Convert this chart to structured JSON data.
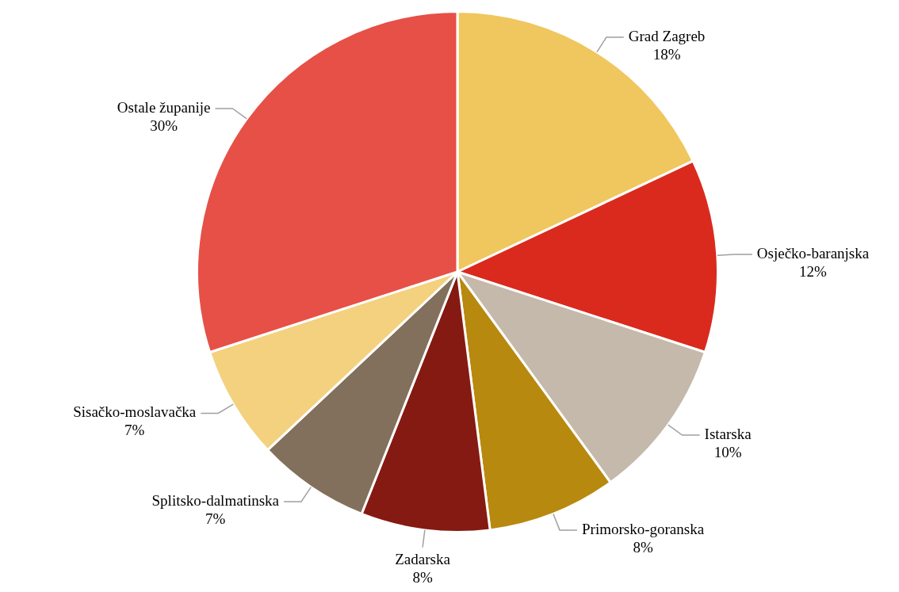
{
  "chart_data": {
    "type": "pie",
    "categories": [
      "Grad Zagreb",
      "Osječko-baranjska",
      "Istarska",
      "Primorsko-goranska",
      "Zadarska",
      "Splitsko-dalmatinska",
      "Sisačko-moslavačka",
      "Ostale županije"
    ],
    "values": [
      18,
      12,
      10,
      8,
      8,
      7,
      7,
      30
    ],
    "value_labels": [
      "18%",
      "12%",
      "10%",
      "8%",
      "8%",
      "7%",
      "7%",
      "30%"
    ],
    "colors": [
      "#f0c75e",
      "#da2a1e",
      "#c5b9ab",
      "#b8890f",
      "#851a12",
      "#82705c",
      "#f3d17f",
      "#e65046"
    ],
    "legend": false
  }
}
